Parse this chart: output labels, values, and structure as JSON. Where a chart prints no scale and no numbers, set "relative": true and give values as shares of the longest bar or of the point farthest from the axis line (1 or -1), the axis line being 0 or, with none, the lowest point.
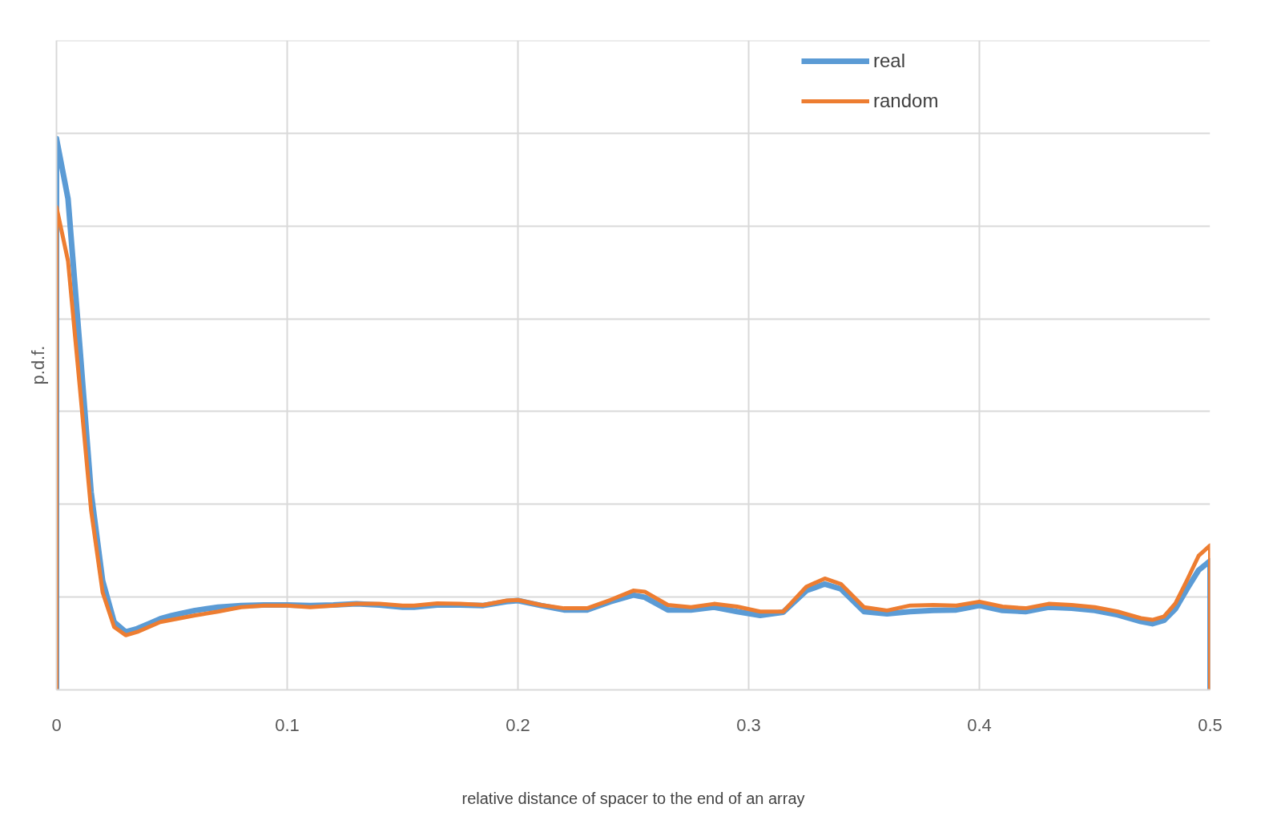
{
  "chart_data": {
    "type": "line",
    "relative": true,
    "xlabel": "relative distance of spacer to the end of an array",
    "ylabel": "p.d.f.",
    "xlim": [
      0,
      0.5
    ],
    "xticks": [
      0,
      0.1,
      0.2,
      0.3,
      0.4,
      0.5
    ],
    "grid": true,
    "legend": "top right",
    "line_style": "solid",
    "marker": "none",
    "x": [
      0,
      0,
      0.005,
      0.01,
      0.015,
      0.02,
      0.025,
      0.03,
      0.035,
      0.04,
      0.045,
      0.05,
      0.06,
      0.07,
      0.08,
      0.09,
      0.1,
      0.11,
      0.12,
      0.13,
      0.14,
      0.15,
      0.155,
      0.165,
      0.175,
      0.185,
      0.195,
      0.2,
      0.21,
      0.22,
      0.23,
      0.24,
      0.25,
      0.255,
      0.265,
      0.275,
      0.285,
      0.295,
      0.305,
      0.315,
      0.325,
      0.333,
      0.34,
      0.35,
      0.36,
      0.37,
      0.38,
      0.39,
      0.4,
      0.41,
      0.42,
      0.43,
      0.44,
      0.45,
      0.46,
      0.47,
      0.475,
      0.48,
      0.485,
      0.49,
      0.495,
      0.5,
      0.5
    ],
    "series": [
      {
        "name": "real",
        "color": "#5b9bd5",
        "values": [
          0,
          1.0,
          0.891,
          0.629,
          0.359,
          0.198,
          0.123,
          0.105,
          0.111,
          0.12,
          0.129,
          0.135,
          0.144,
          0.15,
          0.153,
          0.154,
          0.154,
          0.153,
          0.154,
          0.156,
          0.154,
          0.15,
          0.15,
          0.154,
          0.154,
          0.153,
          0.16,
          0.162,
          0.153,
          0.145,
          0.145,
          0.16,
          0.172,
          0.168,
          0.145,
          0.145,
          0.15,
          0.142,
          0.135,
          0.141,
          0.18,
          0.192,
          0.183,
          0.142,
          0.138,
          0.142,
          0.144,
          0.145,
          0.153,
          0.144,
          0.142,
          0.15,
          0.148,
          0.144,
          0.136,
          0.124,
          0.12,
          0.126,
          0.147,
          0.183,
          0.217,
          0.234,
          0
        ]
      },
      {
        "name": "random",
        "color": "#ed7d31",
        "values": [
          0,
          0.876,
          0.778,
          0.554,
          0.326,
          0.177,
          0.114,
          0.099,
          0.105,
          0.114,
          0.123,
          0.127,
          0.135,
          0.142,
          0.15,
          0.153,
          0.153,
          0.15,
          0.153,
          0.156,
          0.156,
          0.153,
          0.153,
          0.157,
          0.156,
          0.154,
          0.162,
          0.163,
          0.154,
          0.148,
          0.148,
          0.163,
          0.18,
          0.178,
          0.154,
          0.15,
          0.156,
          0.151,
          0.142,
          0.142,
          0.187,
          0.202,
          0.192,
          0.15,
          0.144,
          0.153,
          0.154,
          0.153,
          0.16,
          0.151,
          0.148,
          0.156,
          0.154,
          0.15,
          0.142,
          0.13,
          0.127,
          0.133,
          0.157,
          0.199,
          0.243,
          0.262,
          0
        ]
      }
    ]
  }
}
